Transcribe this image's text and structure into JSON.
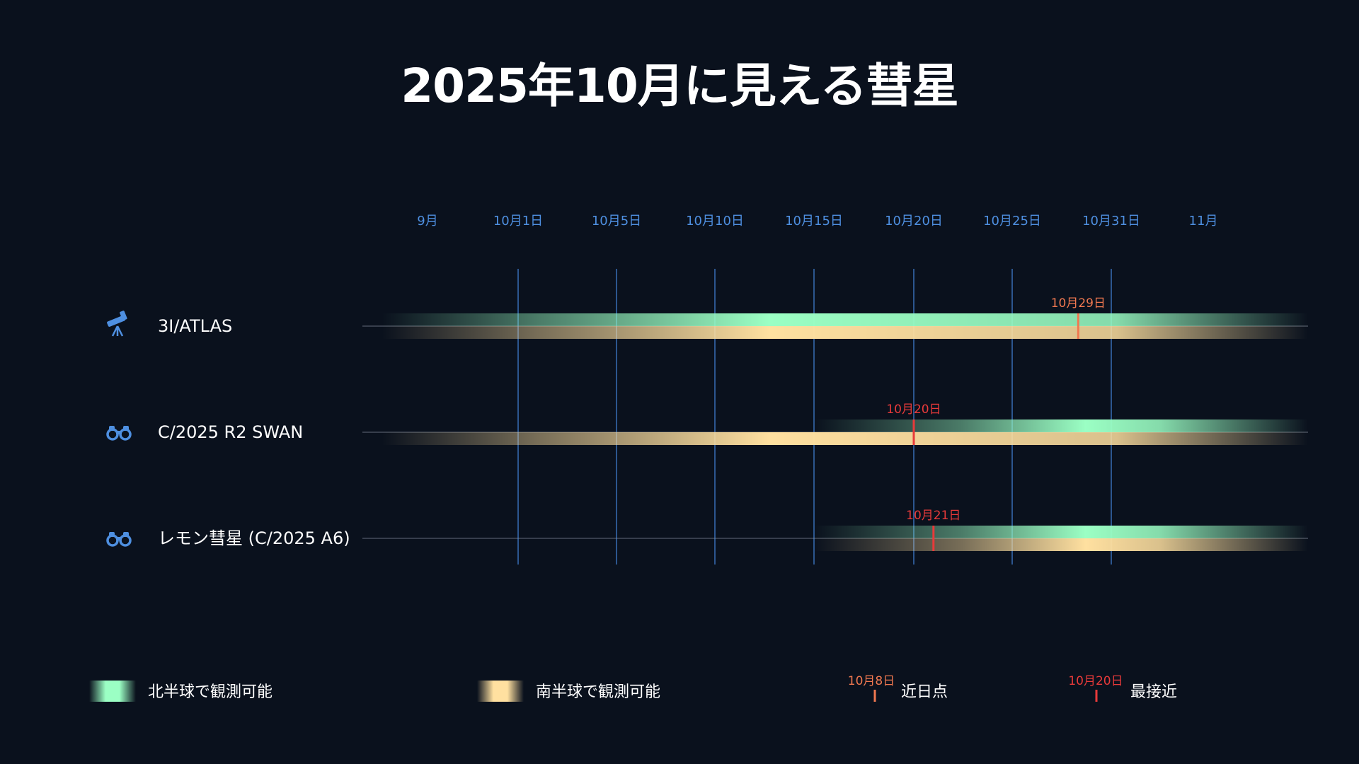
{
  "title": "2025年10月に見える彗星",
  "chart_data": {
    "type": "timeline",
    "x_ticks": [
      "9月",
      "10月1日",
      "10月5日",
      "10月10日",
      "10月15日",
      "10月20日",
      "10月25日",
      "10月31日",
      "11月"
    ],
    "gridlines_at_ticks": [
      "10月1日",
      "10月5日",
      "10月10日",
      "10月15日",
      "10月20日",
      "10月25日",
      "10月31日"
    ],
    "comets": [
      {
        "name": "3I/ATLAS",
        "icon": "telescope-icon",
        "north_visible": {
          "start": "9月",
          "end": "11月"
        },
        "south_visible": {
          "start": "9月",
          "end": "11月"
        },
        "marker": {
          "label": "10月29日",
          "date_day": 29,
          "type": "perihelion"
        }
      },
      {
        "name": "C/2025 R2 SWAN",
        "icon": "binoculars-icon",
        "north_visible": {
          "start": "10月15日",
          "end": "11月"
        },
        "south_visible": {
          "start": "9月",
          "end": "11月"
        },
        "marker": {
          "label": "10月20日",
          "date_day": 20,
          "type": "closest_approach"
        }
      },
      {
        "name": "レモン彗星 (C/2025 A6)",
        "icon": "binoculars-icon",
        "north_visible": {
          "start": "10月15日",
          "end": "11月"
        },
        "south_visible": {
          "start": "10月15日",
          "end": "11月"
        },
        "marker": {
          "label": "10月21日",
          "date_day": 21,
          "type": "closest_approach"
        }
      }
    ],
    "legend": {
      "north": "北半球で観測可能",
      "south": "南半球で観測可能",
      "perihelion_date": "10月8日",
      "perihelion_label": "近日点",
      "closest_date": "10月20日",
      "closest_label": "最接近"
    },
    "colors": {
      "background": "#0a111d",
      "north": "#9bffc4",
      "south": "#ffe0a0",
      "tick": "#4e8fe0",
      "perihelion": "#f07850",
      "closest": "#e83a3a",
      "gridline": "#3f7fd0"
    }
  }
}
